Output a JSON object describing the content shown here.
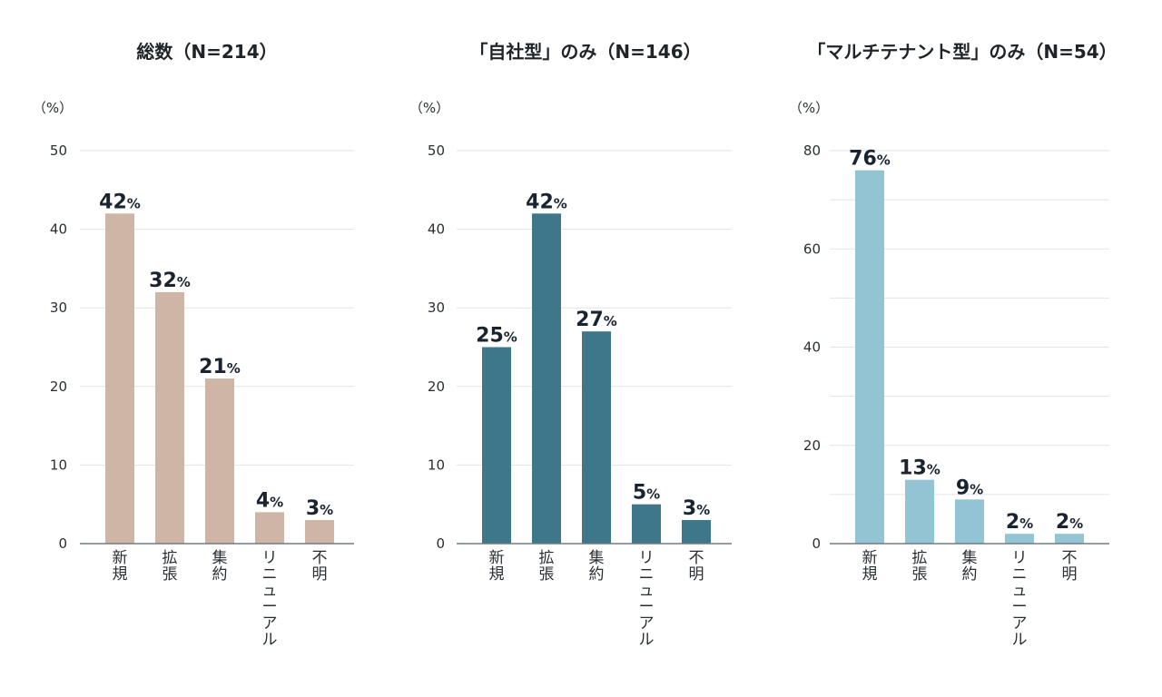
{
  "chart_data": [
    {
      "type": "bar",
      "title": "総数（N=214）",
      "unit_label": "（%）",
      "categories": [
        "新規",
        "拡張",
        "集約",
        "リニューアル",
        "不明"
      ],
      "values": [
        42,
        32,
        21,
        4,
        3
      ],
      "value_suffix": "%",
      "ylim": [
        0,
        50
      ],
      "yticks": [
        0,
        10,
        20,
        30,
        40,
        50
      ],
      "grid_step": 10,
      "color": "#cfb5a5"
    },
    {
      "type": "bar",
      "title": "「自社型」のみ（N=146）",
      "unit_label": "（%）",
      "categories": [
        "新規",
        "拡張",
        "集約",
        "リニューアル",
        "不明"
      ],
      "values": [
        25,
        42,
        27,
        5,
        3
      ],
      "value_suffix": "%",
      "ylim": [
        0,
        50
      ],
      "yticks": [
        0,
        10,
        20,
        30,
        40,
        50
      ],
      "grid_step": 10,
      "color": "#3e778a"
    },
    {
      "type": "bar",
      "title": "「マルチテナント型」のみ（N=54）",
      "unit_label": "（%）",
      "categories": [
        "新規",
        "拡張",
        "集約",
        "リニューアル",
        "不明"
      ],
      "values": [
        76,
        13,
        9,
        2,
        2
      ],
      "value_suffix": "%",
      "ylim": [
        0,
        80
      ],
      "yticks": [
        0,
        20,
        40,
        60,
        80
      ],
      "grid_step": 10,
      "color": "#93c4d4"
    }
  ]
}
